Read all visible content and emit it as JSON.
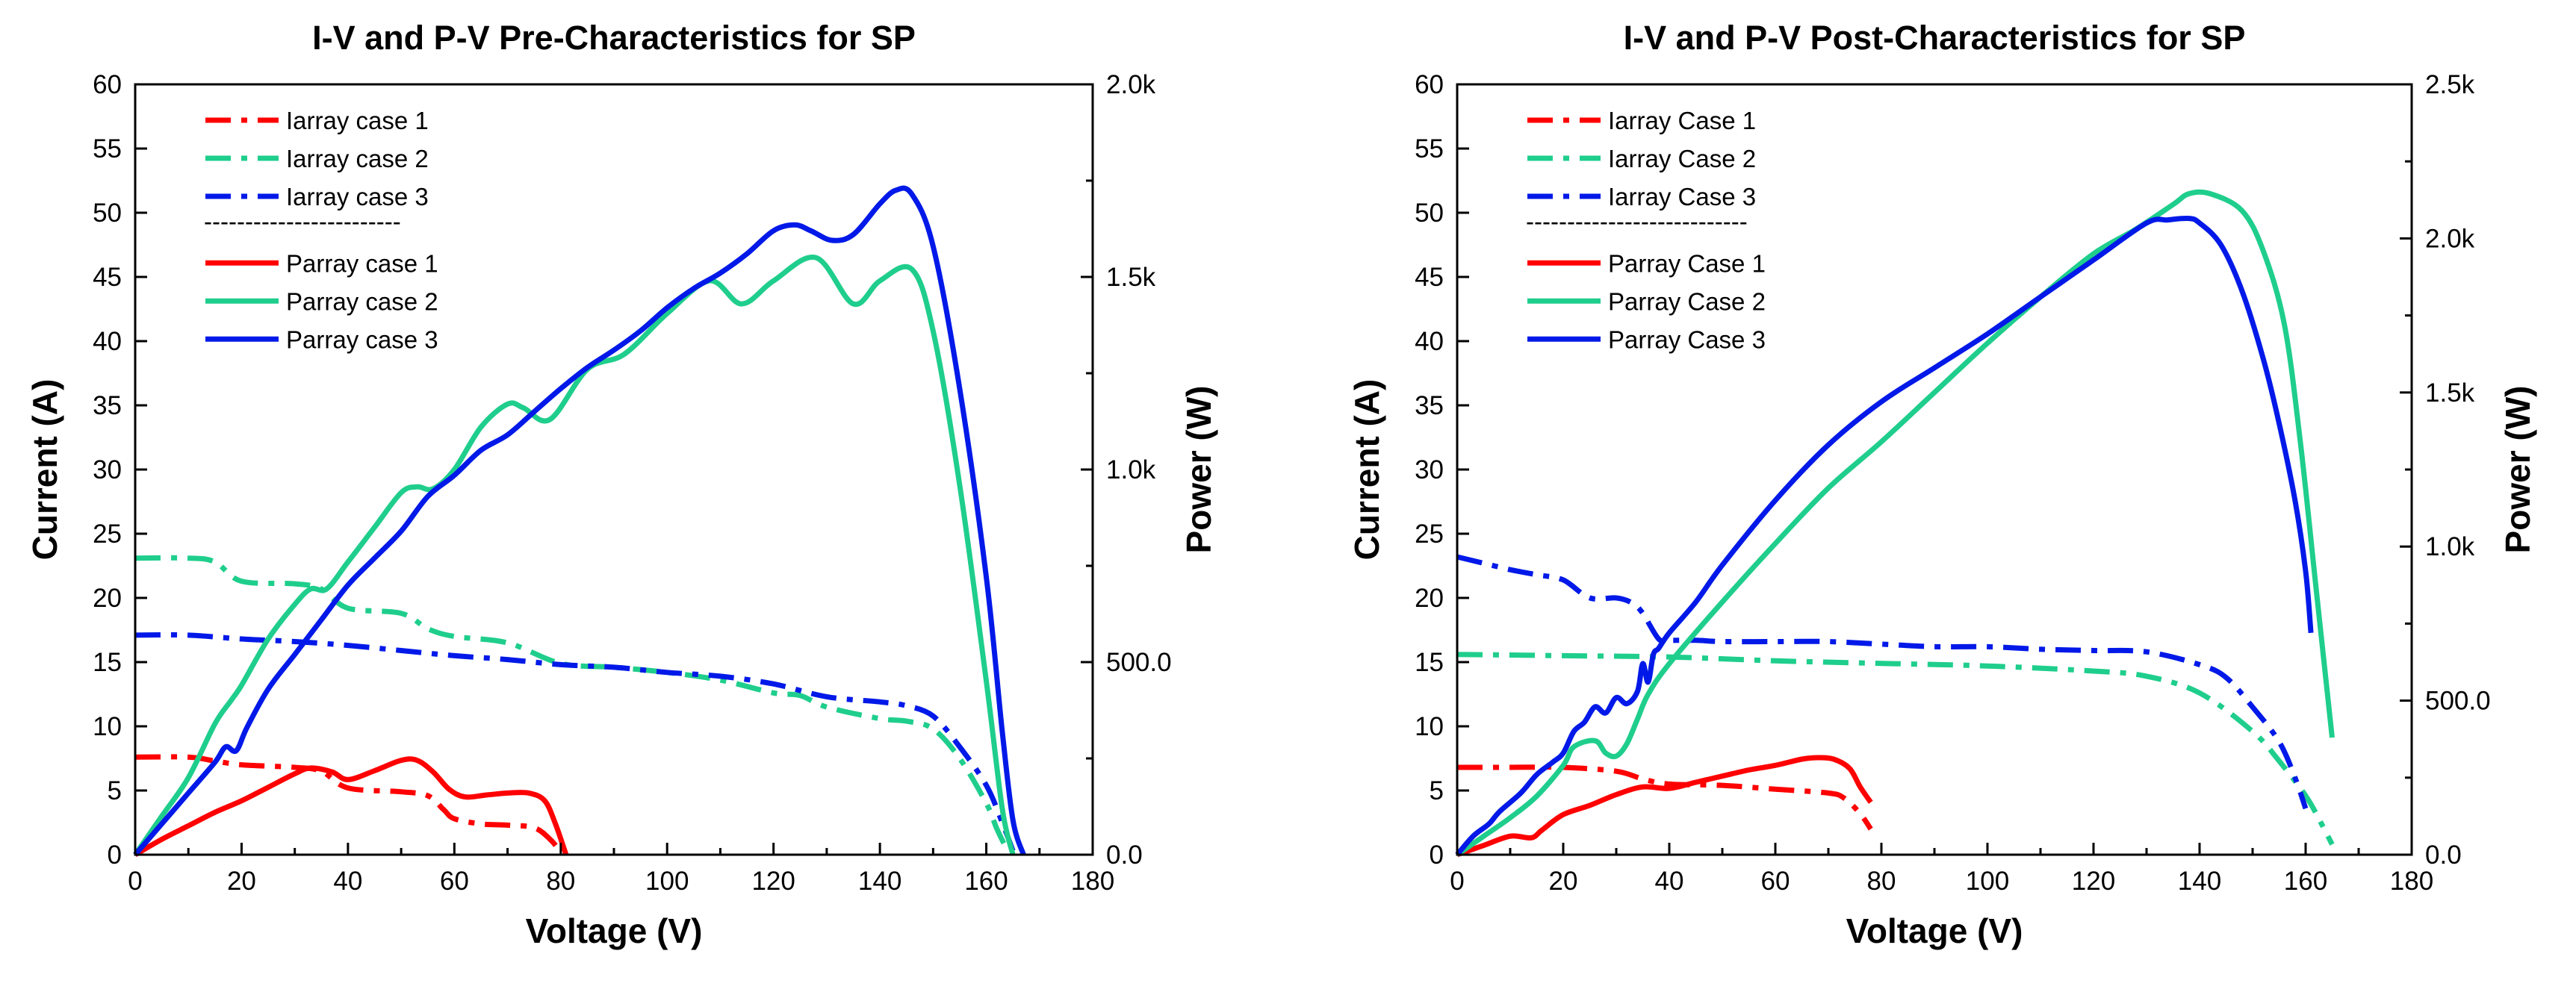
{
  "chart_data": [
    {
      "type": "line",
      "title": "I-V and P-V Pre-Characteristics for SP",
      "xlabel": "Voltage (V)",
      "ylabel": "Current (A)",
      "y2label": "Power (W)",
      "xlim": [
        0,
        180
      ],
      "ylim": [
        0,
        60
      ],
      "y2lim": [
        0,
        2000
      ],
      "xticks": [
        0,
        20,
        40,
        60,
        80,
        100,
        120,
        140,
        160,
        180
      ],
      "yticks": [
        0,
        5,
        10,
        15,
        20,
        25,
        30,
        35,
        40,
        45,
        50,
        55,
        60
      ],
      "y2ticks": [
        0,
        500,
        1000,
        1500,
        2000
      ],
      "y2ticklabels": [
        "0.0",
        "500.0",
        "1.0k",
        "1.5k",
        "2.0k"
      ],
      "legend_separator": "------------------------",
      "legend_position": "top-left",
      "series": [
        {
          "name": "Iarray case 1",
          "kind": "current",
          "axis": "left",
          "color": "#ff0000",
          "x": [
            0,
            10,
            15,
            20,
            30,
            35,
            40,
            50,
            55,
            58,
            60,
            65,
            70,
            75,
            78,
            80
          ],
          "y": [
            7.6,
            7.6,
            7.3,
            7.0,
            6.8,
            6.5,
            5.2,
            4.9,
            4.6,
            3.5,
            2.8,
            2.4,
            2.3,
            2.1,
            1.2,
            0.2
          ]
        },
        {
          "name": "Iarray case 2",
          "kind": "current",
          "axis": "left",
          "color": "#1fce8c",
          "x": [
            0,
            10,
            15,
            20,
            30,
            35,
            40,
            50,
            55,
            60,
            70,
            80,
            90,
            100,
            110,
            120,
            125,
            130,
            140,
            145,
            150,
            155,
            160,
            162,
            164
          ],
          "y": [
            23.1,
            23.1,
            22.8,
            21.3,
            21.1,
            20.7,
            19.2,
            18.8,
            17.6,
            17.0,
            16.5,
            14.9,
            14.6,
            14.2,
            13.6,
            12.6,
            12.4,
            11.5,
            10.6,
            10.4,
            9.8,
            7.5,
            4.0,
            2.0,
            0.3
          ]
        },
        {
          "name": "Iarray case 3",
          "kind": "current",
          "axis": "left",
          "color": "#0019e8",
          "x": [
            0,
            10,
            20,
            30,
            40,
            50,
            60,
            70,
            80,
            90,
            100,
            110,
            120,
            130,
            140,
            145,
            150,
            155,
            160,
            163,
            165
          ],
          "y": [
            17.1,
            17.1,
            16.8,
            16.6,
            16.3,
            15.9,
            15.5,
            15.2,
            14.8,
            14.6,
            14.2,
            13.9,
            13.3,
            12.3,
            11.9,
            11.6,
            10.8,
            8.4,
            5.4,
            2.5,
            0.3
          ]
        },
        {
          "name": "Parray case 1",
          "kind": "power",
          "axis": "right",
          "color": "#ff0000",
          "x": [
            0,
            5,
            10,
            15,
            20,
            25,
            30,
            33,
            37,
            40,
            45,
            50,
            53,
            56,
            59,
            62,
            66,
            70,
            74,
            77,
            79,
            81
          ],
          "y": [
            0,
            40,
            75,
            110,
            140,
            175,
            210,
            225,
            215,
            195,
            218,
            245,
            245,
            215,
            170,
            150,
            155,
            160,
            160,
            140,
            80,
            0
          ]
        },
        {
          "name": "Parray case 2",
          "kind": "power",
          "axis": "right",
          "color": "#1fce8c",
          "x": [
            0,
            5,
            10,
            15,
            18,
            20,
            25,
            30,
            33,
            36,
            40,
            45,
            50,
            53,
            56,
            60,
            65,
            70,
            73,
            78,
            85,
            92,
            100,
            108,
            114,
            120,
            128,
            135,
            140,
            146,
            150,
            155,
            160,
            163,
            165
          ],
          "y": [
            0,
            100,
            200,
            340,
            400,
            440,
            560,
            650,
            690,
            690,
            760,
            850,
            940,
            955,
            950,
            1000,
            1110,
            1170,
            1160,
            1130,
            1260,
            1300,
            1405,
            1490,
            1430,
            1490,
            1550,
            1430,
            1490,
            1520,
            1360,
            960,
            450,
            120,
            0
          ]
        },
        {
          "name": "Parray case 3",
          "kind": "power",
          "axis": "right",
          "color": "#0019e8",
          "x": [
            0,
            5,
            10,
            15,
            17,
            19,
            21,
            25,
            30,
            35,
            40,
            45,
            50,
            55,
            60,
            65,
            70,
            75,
            80,
            85,
            90,
            95,
            100,
            105,
            110,
            115,
            120,
            124,
            127,
            131,
            135,
            140,
            143,
            146,
            150,
            155,
            160,
            163,
            165,
            167
          ],
          "y": [
            0,
            80,
            160,
            240,
            280,
            270,
            330,
            430,
            520,
            610,
            700,
            770,
            840,
            930,
            985,
            1050,
            1090,
            1150,
            1210,
            1265,
            1310,
            1360,
            1420,
            1470,
            1510,
            1560,
            1620,
            1635,
            1620,
            1595,
            1610,
            1690,
            1725,
            1715,
            1580,
            1210,
            720,
            320,
            90,
            0
          ]
        }
      ]
    },
    {
      "type": "line",
      "title": "I-V and P-V Post-Characteristics for SP",
      "xlabel": "Voltage (V)",
      "ylabel": "Current (A)",
      "y2label": "Power (W)",
      "xlim": [
        0,
        180
      ],
      "ylim": [
        0,
        60
      ],
      "y2lim": [
        0,
        2500
      ],
      "xticks": [
        0,
        20,
        40,
        60,
        80,
        100,
        120,
        140,
        160,
        180
      ],
      "yticks": [
        0,
        5,
        10,
        15,
        20,
        25,
        30,
        35,
        40,
        45,
        50,
        55,
        60
      ],
      "y2ticks": [
        0,
        500,
        1000,
        1500,
        2000,
        2500
      ],
      "y2ticklabels": [
        "0.0",
        "500.0",
        "1.0k",
        "1.5k",
        "2.0k",
        "2.5k"
      ],
      "legend_separator": "---------------------------",
      "legend_position": "top-left",
      "series": [
        {
          "name": "Iarray Case 1",
          "kind": "current",
          "axis": "left",
          "color": "#ff0000",
          "x": [
            0,
            10,
            20,
            30,
            35,
            40,
            50,
            60,
            70,
            73,
            76,
            78
          ],
          "y": [
            6.8,
            6.8,
            6.8,
            6.5,
            5.9,
            5.5,
            5.4,
            5.1,
            4.8,
            4.4,
            3.2,
            2.0
          ]
        },
        {
          "name": "Iarray Case 2",
          "kind": "current",
          "axis": "left",
          "color": "#1fce8c",
          "x": [
            0,
            20,
            40,
            60,
            80,
            100,
            120,
            130,
            140,
            150,
            155,
            160,
            163,
            165
          ],
          "y": [
            15.6,
            15.5,
            15.4,
            15.1,
            14.9,
            14.7,
            14.3,
            13.9,
            12.6,
            9.6,
            7.3,
            4.6,
            2.4,
            0.8
          ]
        },
        {
          "name": "Iarray Case 3",
          "kind": "current",
          "axis": "left",
          "color": "#0019e8",
          "x": [
            0,
            5,
            10,
            15,
            20,
            25,
            30,
            33,
            35,
            38,
            40,
            45,
            50,
            60,
            70,
            80,
            90,
            100,
            110,
            120,
            130,
            140,
            145,
            150,
            155,
            158,
            160
          ],
          "y": [
            23.2,
            22.7,
            22.2,
            21.8,
            21.4,
            20.0,
            20.0,
            19.6,
            18.8,
            16.8,
            16.7,
            16.7,
            16.6,
            16.6,
            16.6,
            16.4,
            16.2,
            16.2,
            16.0,
            15.9,
            15.8,
            14.8,
            13.8,
            11.5,
            8.8,
            6.0,
            3.6
          ]
        },
        {
          "name": "Parray Case 1",
          "kind": "power",
          "axis": "right",
          "color": "#ff0000",
          "x": [
            0,
            5,
            10,
            14,
            16,
            20,
            25,
            30,
            35,
            40,
            45,
            50,
            55,
            60,
            65,
            68,
            71,
            74,
            76,
            78
          ],
          "y": [
            0,
            30,
            60,
            55,
            80,
            130,
            160,
            195,
            220,
            215,
            235,
            255,
            275,
            290,
            310,
            315,
            310,
            280,
            220,
            170
          ]
        },
        {
          "name": "Parray Case 2",
          "kind": "power",
          "axis": "right",
          "color": "#1fce8c",
          "x": [
            0,
            5,
            10,
            15,
            20,
            22,
            26,
            28,
            30,
            32,
            34,
            36,
            40,
            50,
            60,
            70,
            80,
            90,
            100,
            110,
            120,
            128,
            135,
            138,
            142,
            148,
            152,
            156,
            159,
            162,
            165
          ],
          "y": [
            0,
            60,
            120,
            190,
            290,
            350,
            370,
            330,
            320,
            360,
            440,
            520,
            620,
            820,
            1010,
            1190,
            1340,
            1500,
            1660,
            1810,
            1950,
            2030,
            2110,
            2145,
            2145,
            2090,
            1960,
            1720,
            1340,
            860,
            380
          ]
        },
        {
          "name": "Parray Case 3",
          "kind": "power",
          "axis": "right",
          "color": "#0019e8",
          "x": [
            0,
            3,
            6,
            8,
            12,
            15,
            18,
            20,
            22,
            24,
            26,
            28,
            30,
            32,
            34,
            35,
            36,
            37,
            38,
            40,
            45,
            50,
            60,
            70,
            80,
            90,
            100,
            110,
            120,
            130,
            134,
            138,
            140,
            144,
            148,
            152,
            155,
            158,
            160,
            161
          ],
          "y": [
            0,
            60,
            100,
            140,
            200,
            260,
            300,
            330,
            400,
            430,
            480,
            460,
            510,
            490,
            530,
            620,
            560,
            650,
            670,
            720,
            820,
            940,
            1150,
            1330,
            1470,
            1580,
            1690,
            1810,
            1930,
            2050,
            2060,
            2065,
            2050,
            1980,
            1830,
            1610,
            1400,
            1150,
            920,
            720
          ]
        }
      ]
    }
  ]
}
